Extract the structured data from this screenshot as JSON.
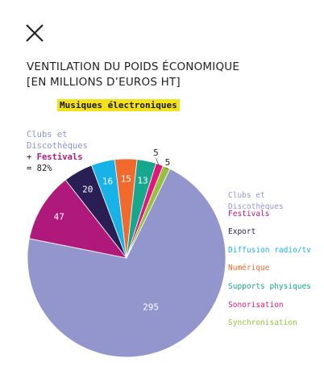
{
  "header": {
    "title_line1": "VENTILATION DU POIDS ÉCONOMIQUE",
    "title_line2": "[EN MILLIONS D’EUROS HT]",
    "tag": "Musiques électroniques"
  },
  "note": {
    "line1": "Clubs et",
    "line2": "Discothèques",
    "plus": "+ ",
    "festivals": "Festivals",
    "line4": "= 82%"
  },
  "colors": {
    "clubs": "#9396cc",
    "festivals": "#b0197c",
    "export": "#2a1f55",
    "diffusion": "#17b3e8",
    "numerique": "#ef6a2c",
    "supports": "#17a68e",
    "sonorisation": "#e1157b",
    "synchronisation": "#95c23d"
  },
  "chart_data": {
    "type": "pie",
    "slices": [
      {
        "label": "Clubs et Discothèques",
        "value": 295,
        "color": "#9396cc"
      },
      {
        "label": "Festivals",
        "value": 47,
        "color": "#b0197c"
      },
      {
        "label": "Export",
        "value": 20,
        "color": "#2a1f55"
      },
      {
        "label": "Diffusion radio/tv",
        "value": 16,
        "color": "#17b3e8"
      },
      {
        "label": "Numérique",
        "value": 15,
        "color": "#ef6a2c"
      },
      {
        "label": "Supports physiques",
        "value": 13,
        "color": "#17a68e"
      },
      {
        "label": "Sonorisation",
        "value": 5,
        "color": "#e1157b"
      },
      {
        "label": "Synchronisation",
        "value": 5,
        "color": "#95c23d"
      }
    ]
  }
}
